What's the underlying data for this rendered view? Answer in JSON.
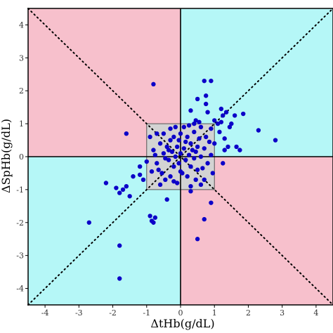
{
  "chart_data": {
    "type": "scatter",
    "title": "",
    "xlabel": "ΔtHb(g/dL)",
    "ylabel": "ΔSpHb(g/dL)",
    "xlim": [
      -4.5,
      4.5
    ],
    "ylim": [
      -4.5,
      4.5
    ],
    "xticks": [
      -4,
      -3,
      -2,
      -1,
      0,
      1,
      2,
      3,
      4
    ],
    "yticks": [
      -4,
      -3,
      -2,
      -1,
      0,
      1,
      2,
      3,
      4
    ],
    "grid": false,
    "colors": {
      "quadrant_agree": "#b5f7f7",
      "quadrant_disagree": "#f7c0cc",
      "exclusion_zone": "#d3d3d3",
      "points": "#0c00c8",
      "lines": "#000000"
    },
    "exclusion_zone": {
      "x": [
        -1,
        1
      ],
      "y": [
        -1,
        1
      ]
    },
    "points": [
      {
        "x": -2.7,
        "y": -2.0
      },
      {
        "x": -1.8,
        "y": -2.7
      },
      {
        "x": -1.8,
        "y": -3.7
      },
      {
        "x": -2.2,
        "y": -0.8
      },
      {
        "x": -1.9,
        "y": -0.95
      },
      {
        "x": -1.8,
        "y": -1.1
      },
      {
        "x": -1.7,
        "y": -1.0
      },
      {
        "x": -1.6,
        "y": -0.9
      },
      {
        "x": -1.5,
        "y": -1.2
      },
      {
        "x": -1.4,
        "y": -0.6
      },
      {
        "x": -1.2,
        "y": -0.3
      },
      {
        "x": -1.2,
        "y": -0.55
      },
      {
        "x": -1.1,
        "y": -0.7
      },
      {
        "x": -1.0,
        "y": -0.15
      },
      {
        "x": -1.6,
        "y": 0.7
      },
      {
        "x": -0.8,
        "y": 2.2
      },
      {
        "x": -0.9,
        "y": -1.8
      },
      {
        "x": -0.85,
        "y": -1.95
      },
      {
        "x": -0.8,
        "y": -2.0
      },
      {
        "x": -0.75,
        "y": -1.85
      },
      {
        "x": -0.4,
        "y": -1.3
      },
      {
        "x": -0.9,
        "y": 0.6
      },
      {
        "x": -0.8,
        "y": 0.2
      },
      {
        "x": -0.75,
        "y": 0.05
      },
      {
        "x": -0.7,
        "y": -0.2
      },
      {
        "x": -0.65,
        "y": -0.4
      },
      {
        "x": -0.6,
        "y": 0.4
      },
      {
        "x": -0.55,
        "y": -0.5
      },
      {
        "x": -0.5,
        "y": 0.1
      },
      {
        "x": -0.5,
        "y": 0.7
      },
      {
        "x": -0.45,
        "y": -0.7
      },
      {
        "x": -0.4,
        "y": 0.3
      },
      {
        "x": -0.35,
        "y": -0.1
      },
      {
        "x": -0.3,
        "y": 0.5
      },
      {
        "x": -0.3,
        "y": -0.6
      },
      {
        "x": -0.25,
        "y": 0.15
      },
      {
        "x": -0.2,
        "y": -0.3
      },
      {
        "x": -0.2,
        "y": 0.6
      },
      {
        "x": -0.15,
        "y": 0.0
      },
      {
        "x": -0.1,
        "y": 0.3
      },
      {
        "x": -0.1,
        "y": -0.8
      },
      {
        "x": -0.05,
        "y": 0.5
      },
      {
        "x": -0.05,
        "y": -0.2
      },
      {
        "x": 0.0,
        "y": 0.1
      },
      {
        "x": 0.0,
        "y": 0.7
      },
      {
        "x": 0.05,
        "y": -0.5
      },
      {
        "x": 0.1,
        "y": 0.25
      },
      {
        "x": 0.15,
        "y": -0.1
      },
      {
        "x": 0.2,
        "y": 0.6
      },
      {
        "x": 0.2,
        "y": -0.6
      },
      {
        "x": 0.25,
        "y": 0.05
      },
      {
        "x": 0.3,
        "y": 0.4
      },
      {
        "x": 0.3,
        "y": -0.3
      },
      {
        "x": 0.35,
        "y": 0.2
      },
      {
        "x": 0.4,
        "y": -0.05
      },
      {
        "x": 0.4,
        "y": 0.75
      },
      {
        "x": 0.45,
        "y": -0.7
      },
      {
        "x": 0.5,
        "y": 0.3
      },
      {
        "x": 0.55,
        "y": 0.55
      },
      {
        "x": 0.6,
        "y": 0.0
      },
      {
        "x": 0.65,
        "y": -0.35
      },
      {
        "x": 0.7,
        "y": 0.25
      },
      {
        "x": 0.75,
        "y": 0.6
      },
      {
        "x": 0.8,
        "y": -0.2
      },
      {
        "x": 0.85,
        "y": 0.45
      },
      {
        "x": 0.9,
        "y": 0.05
      },
      {
        "x": 0.9,
        "y": 0.85
      },
      {
        "x": 0.95,
        "y": -0.5
      },
      {
        "x": -0.6,
        "y": -0.85
      },
      {
        "x": -0.7,
        "y": 0.7
      },
      {
        "x": 0.1,
        "y": 0.9
      },
      {
        "x": -0.3,
        "y": 0.85
      },
      {
        "x": 0.6,
        "y": -0.85
      },
      {
        "x": 0.3,
        "y": -0.9
      },
      {
        "x": -0.85,
        "y": -0.45
      },
      {
        "x": 0.0,
        "y": -0.45
      },
      {
        "x": -0.45,
        "y": -0.05
      },
      {
        "x": 0.45,
        "y": 0.15
      },
      {
        "x": 0.25,
        "y": 0.95
      },
      {
        "x": 0.15,
        "y": 0.45
      },
      {
        "x": -0.15,
        "y": 0.9
      },
      {
        "x": 0.5,
        "y": -0.4
      },
      {
        "x": -0.35,
        "y": 0.2
      },
      {
        "x": 0.7,
        "y": -0.7
      },
      {
        "x": -0.2,
        "y": -0.75
      },
      {
        "x": 0.3,
        "y": 1.4
      },
      {
        "x": 0.4,
        "y": 1.0
      },
      {
        "x": 0.45,
        "y": 1.1
      },
      {
        "x": 0.5,
        "y": 1.75
      },
      {
        "x": 0.55,
        "y": 1.05
      },
      {
        "x": 0.6,
        "y": 0.9
      },
      {
        "x": 0.7,
        "y": 2.3
      },
      {
        "x": 0.75,
        "y": 1.6
      },
      {
        "x": 0.75,
        "y": 1.85
      },
      {
        "x": 0.8,
        "y": 1.35
      },
      {
        "x": 0.9,
        "y": 2.3
      },
      {
        "x": 1.0,
        "y": 0.4
      },
      {
        "x": 1.0,
        "y": 1.1
      },
      {
        "x": 1.1,
        "y": 1.0
      },
      {
        "x": 1.15,
        "y": 0.75
      },
      {
        "x": 1.2,
        "y": 1.05
      },
      {
        "x": 1.25,
        "y": 1.25
      },
      {
        "x": 1.3,
        "y": 0.2
      },
      {
        "x": 1.3,
        "y": 0.55
      },
      {
        "x": 1.35,
        "y": 1.35
      },
      {
        "x": 1.4,
        "y": 0.3
      },
      {
        "x": 1.45,
        "y": 0.9
      },
      {
        "x": 1.5,
        "y": 1.0
      },
      {
        "x": 1.6,
        "y": 1.25
      },
      {
        "x": 1.65,
        "y": 0.3
      },
      {
        "x": 1.75,
        "y": 0.2
      },
      {
        "x": 1.85,
        "y": 1.3
      },
      {
        "x": 2.3,
        "y": 0.8
      },
      {
        "x": 2.8,
        "y": 0.5
      },
      {
        "x": 1.25,
        "y": -0.2
      },
      {
        "x": 0.9,
        "y": -1.4
      },
      {
        "x": 0.7,
        "y": -1.9
      },
      {
        "x": 0.5,
        "y": -2.5
      },
      {
        "x": 0.3,
        "y": -1.05
      },
      {
        "x": 1.2,
        "y": 1.45
      }
    ]
  }
}
